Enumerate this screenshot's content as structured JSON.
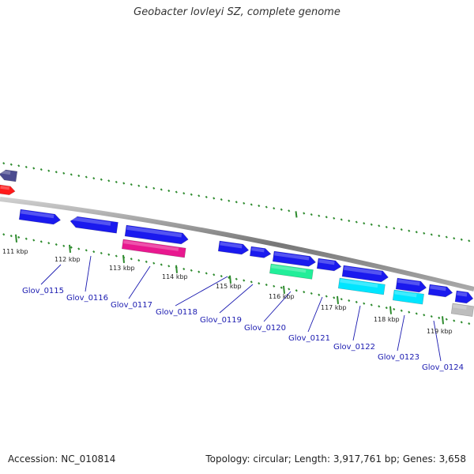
{
  "title": "Geobacter lovleyi SZ, complete genome",
  "footer": {
    "accession": "Accession: NC_010814",
    "summary": "Topology: circular; Length: 3,917,761 bp; Genes: 3,658"
  },
  "colors": {
    "background": "#ffffff",
    "backbone": "#8c8c8c",
    "tick": "#2e8b2e",
    "label_text": "#1a1ab0",
    "leader_line": "#1a1ab0"
  },
  "tick_labels": [
    "111 kbp",
    "112 kbp",
    "113 kbp",
    "114 kbp",
    "115 kbp",
    "116 kbp",
    "117 kbp",
    "118 kbp",
    "119 kbp"
  ],
  "gene_labels": [
    "Glov_0115",
    "Glov_0116",
    "Glov_0117",
    "Glov_0118",
    "Glov_0119",
    "Glov_0120",
    "Glov_0121",
    "Glov_0122",
    "Glov_0123",
    "Glov_0124"
  ],
  "features": [
    {
      "track": "outer",
      "color": "#4b4b8f",
      "direction": "left"
    },
    {
      "track": "outer",
      "color": "#ff1a1a",
      "direction": "right"
    },
    {
      "track": "inner",
      "color": "#1a1aee",
      "direction": "right"
    },
    {
      "track": "inner",
      "color": "#1a1aee",
      "direction": "left"
    },
    {
      "track": "inner",
      "color": "#1a1aee",
      "direction": "right"
    },
    {
      "track": "inner2",
      "color": "#e8188f",
      "direction": "none"
    },
    {
      "track": "inner",
      "color": "#1a1aee",
      "direction": "right"
    },
    {
      "track": "inner",
      "color": "#1a1aee",
      "direction": "right"
    },
    {
      "track": "inner",
      "color": "#1a1aee",
      "direction": "right"
    },
    {
      "track": "inner",
      "color": "#1a1aee",
      "direction": "right"
    },
    {
      "track": "inner",
      "color": "#1a1aee",
      "direction": "right"
    },
    {
      "track": "inner2",
      "color": "#22ee99",
      "direction": "none"
    },
    {
      "track": "inner2",
      "color": "#00e5ff",
      "direction": "none"
    },
    {
      "track": "inner",
      "color": "#1a1aee",
      "direction": "right"
    },
    {
      "track": "inner",
      "color": "#1a1aee",
      "direction": "right"
    },
    {
      "track": "inner2",
      "color": "#00e5ff",
      "direction": "none"
    },
    {
      "track": "inner",
      "color": "#1a1aee",
      "direction": "right"
    },
    {
      "track": "inner2",
      "color": "#bdbdbd",
      "direction": "none"
    }
  ]
}
